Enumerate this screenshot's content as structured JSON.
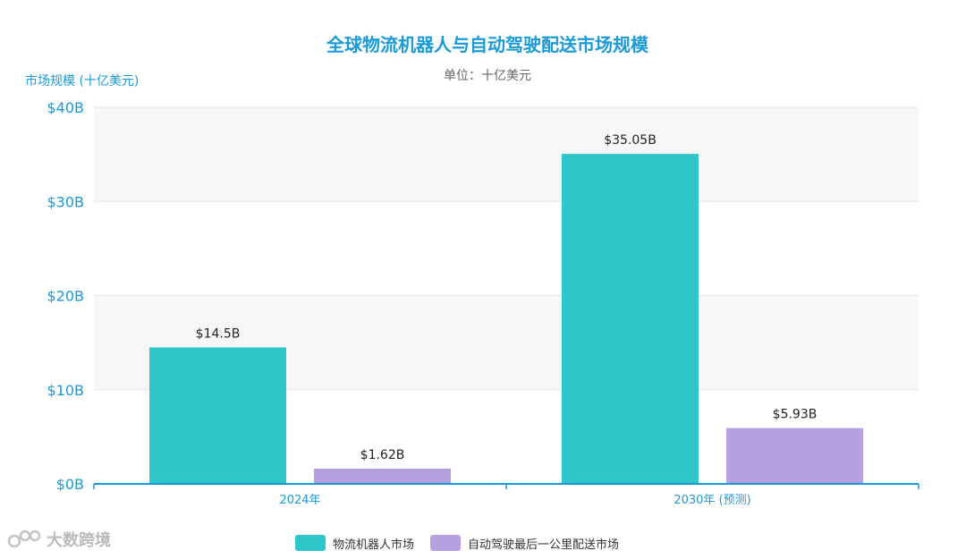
{
  "colors": {
    "series1": "#2ec6c9",
    "series2": "#b7a0df",
    "axis_text": "#1a9ad6",
    "title": "#1a9ad6",
    "grid": "#e6e6e6",
    "band": "#f7f7f7"
  },
  "watermark": {
    "text": "大数跨境",
    "icon": "logo-icon"
  },
  "chart_data": {
    "type": "bar",
    "title": "全球物流机器人与自动驾驶配送市场规模",
    "subtitle": "单位：十亿美元",
    "ylabel": "市场规模 (十亿美元)",
    "xlabel": "",
    "ylim": [
      0,
      40
    ],
    "yticks": [
      {
        "value": 0,
        "label": "$0B"
      },
      {
        "value": 10,
        "label": "$10B"
      },
      {
        "value": 20,
        "label": "$20B"
      },
      {
        "value": 30,
        "label": "$30B"
      },
      {
        "value": 40,
        "label": "$40B"
      }
    ],
    "categories": [
      "2024年",
      "2030年 (预测)"
    ],
    "series": [
      {
        "name": "物流机器人市场",
        "values": [
          14.5,
          35.05
        ],
        "labels": [
          "$14.5B",
          "$35.05B"
        ]
      },
      {
        "name": "自动驾驶最后一公里配送市场",
        "values": [
          1.62,
          5.93
        ],
        "labels": [
          "$1.62B",
          "$5.93B"
        ]
      }
    ],
    "grid": true,
    "legend": "bottom-center"
  }
}
